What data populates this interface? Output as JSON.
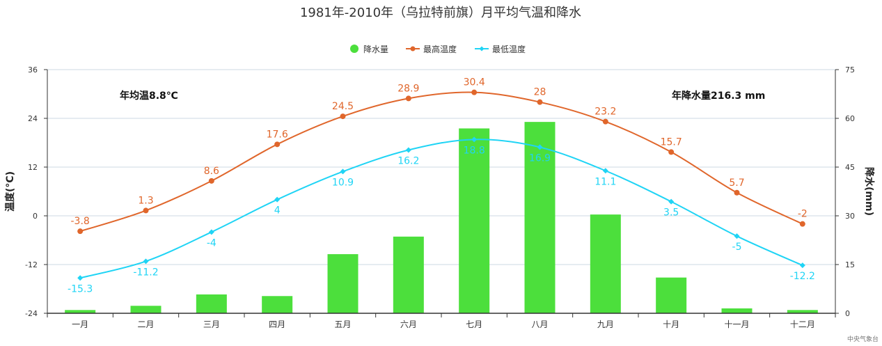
{
  "chart_data": {
    "type": "bar+line",
    "title": "1981年-2010年（乌拉特前旗）月平均气温和降水",
    "categories": [
      "一月",
      "二月",
      "三月",
      "四月",
      "五月",
      "六月",
      "七月",
      "八月",
      "九月",
      "十月",
      "十一月",
      "十二月"
    ],
    "series": [
      {
        "name": "降水量",
        "type": "bar",
        "axis": "right",
        "color": "#4cdf3c",
        "values": [
          1.0,
          2.3,
          5.8,
          5.3,
          18.2,
          23.6,
          56.9,
          58.9,
          30.4,
          11.0,
          1.5,
          1.0
        ]
      },
      {
        "name": "最高温度",
        "type": "line",
        "axis": "left",
        "color": "#e0662b",
        "values": [
          -3.8,
          1.3,
          8.6,
          17.6,
          24.5,
          28.9,
          30.4,
          28,
          23.2,
          15.7,
          5.7,
          -2
        ],
        "labels": [
          "-3.8",
          "1.3",
          "8.6",
          "17.6",
          "24.5",
          "28.9",
          "30.4",
          "28",
          "23.2",
          "15.7",
          "5.7",
          "-2"
        ]
      },
      {
        "name": "最低温度",
        "type": "line",
        "axis": "left",
        "color": "#1fd4f5",
        "values": [
          -15.3,
          -11.2,
          -4,
          4,
          10.9,
          16.2,
          18.8,
          16.9,
          11.1,
          3.5,
          -5,
          -12.2
        ],
        "labels": [
          "-15.3",
          "-11.2",
          "-4",
          "4",
          "10.9",
          "16.2",
          "18.8",
          "16.9",
          "11.1",
          "3.5",
          "-5",
          "-12.2"
        ]
      }
    ],
    "y_left": {
      "label": "温度(°C)",
      "min": -24,
      "max": 36,
      "ticks": [
        "-24",
        "-12",
        "0",
        "12",
        "24",
        "36"
      ]
    },
    "y_right": {
      "label": "降水(mm)",
      "min": 0,
      "max": 75,
      "ticks": [
        "0",
        "15",
        "30",
        "45",
        "60",
        "75"
      ]
    },
    "grid": true,
    "legend_position": "top-center",
    "annotations": {
      "left": "年均温8.8℃",
      "right": "年降水量216.3 mm"
    },
    "source": "中央气象台"
  }
}
